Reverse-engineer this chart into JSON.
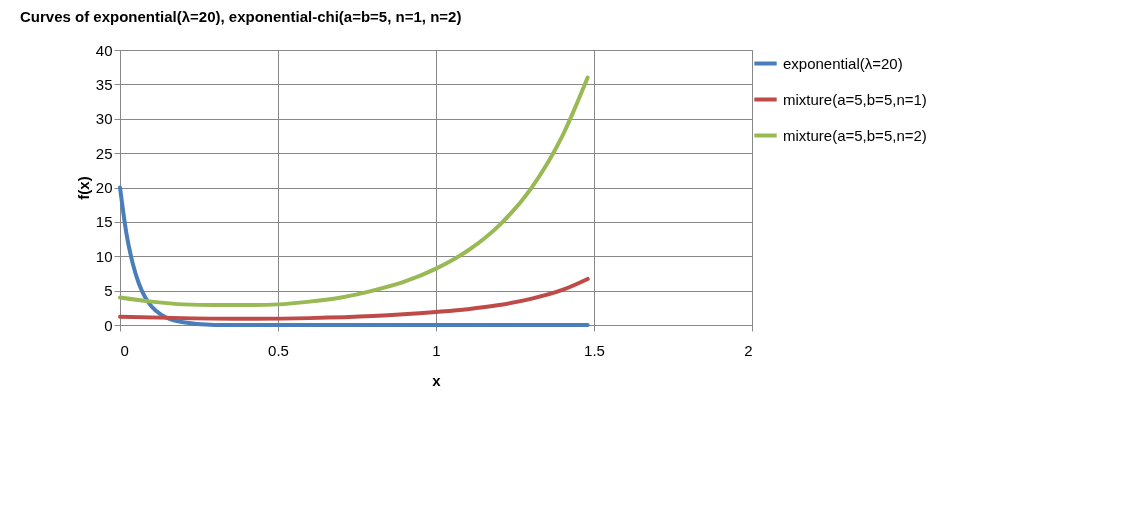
{
  "chart_data": {
    "type": "line",
    "title": "Curves of exponential(λ=20), exponential-chi(a=b=5, n=1, n=2)",
    "xlabel": "x",
    "ylabel": "f(x)",
    "xlim": [
      0,
      2
    ],
    "xticks": [
      0,
      0.5,
      1,
      1.5,
      2
    ],
    "ylim": [
      0,
      40
    ],
    "yticks": [
      0,
      5,
      10,
      15,
      20,
      25,
      30,
      35,
      40
    ],
    "grid": true,
    "legend": "right",
    "marker": "none",
    "line_style": "solid",
    "series": [
      {
        "name": "exponential(λ=20)",
        "color": "#4a7ebb",
        "x": [
          0,
          0.02,
          0.04,
          0.06,
          0.08,
          0.1,
          0.13,
          0.16,
          0.2,
          0.3,
          0.5,
          1,
          1.48
        ],
        "values": [
          20,
          13.4,
          9,
          6,
          4,
          2.7,
          1.5,
          0.8,
          0.4,
          0,
          0,
          0,
          0
        ]
      },
      {
        "name": "mixture(a=5,b=5,n=1)",
        "color": "#be4b48",
        "x": [
          0,
          0.2,
          0.4,
          0.6,
          0.8,
          1,
          1.1,
          1.2,
          1.3,
          1.4,
          1.48
        ],
        "values": [
          1.2,
          1,
          0.9,
          1,
          1.3,
          1.9,
          2.3,
          2.9,
          3.8,
          5.1,
          6.7
        ]
      },
      {
        "name": "mixture(a=5,b=5,n=2)",
        "color": "#98b954",
        "x": [
          0,
          0.1,
          0.2,
          0.3,
          0.4,
          0.5,
          0.6,
          0.7,
          0.8,
          0.9,
          1,
          1.1,
          1.2,
          1.3,
          1.4,
          1.48
        ],
        "values": [
          4,
          3.4,
          3,
          2.9,
          2.9,
          3,
          3.4,
          4,
          5,
          6.3,
          8.2,
          10.8,
          14.5,
          19.8,
          27.5,
          36
        ]
      }
    ]
  }
}
